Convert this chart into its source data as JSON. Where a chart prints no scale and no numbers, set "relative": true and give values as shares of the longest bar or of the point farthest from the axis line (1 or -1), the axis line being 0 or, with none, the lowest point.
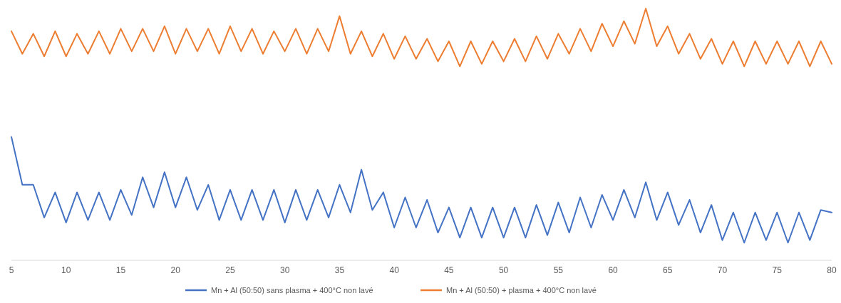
{
  "chart_data": {
    "type": "line",
    "relative": true,
    "x": [
      5,
      6,
      7,
      8,
      9,
      10,
      11,
      12,
      13,
      14,
      15,
      16,
      17,
      18,
      19,
      20,
      21,
      22,
      23,
      24,
      25,
      26,
      27,
      28,
      29,
      30,
      31,
      32,
      33,
      34,
      35,
      36,
      37,
      38,
      39,
      40,
      41,
      42,
      43,
      44,
      45,
      46,
      47,
      48,
      49,
      50,
      51,
      52,
      53,
      54,
      55,
      56,
      57,
      58,
      59,
      60,
      61,
      62,
      63,
      64,
      65,
      66,
      67,
      68,
      69,
      70,
      71,
      72,
      73,
      74,
      75,
      76,
      77,
      78,
      79,
      80
    ],
    "xlim": [
      5,
      80
    ],
    "xticks": [
      5,
      10,
      15,
      20,
      25,
      30,
      35,
      40,
      45,
      50,
      55,
      60,
      65,
      70,
      75,
      80
    ],
    "grid": false,
    "legend": "bottom",
    "series": [
      {
        "name": "Mn + Al (50:50) sans plasma + 400°C non lavé",
        "color": "#4472c4",
        "values": [
          0.49,
          0.3,
          0.3,
          0.17,
          0.27,
          0.15,
          0.27,
          0.16,
          0.27,
          0.16,
          0.28,
          0.18,
          0.33,
          0.21,
          0.35,
          0.21,
          0.33,
          0.2,
          0.3,
          0.16,
          0.28,
          0.16,
          0.28,
          0.16,
          0.28,
          0.15,
          0.28,
          0.16,
          0.28,
          0.17,
          0.3,
          0.19,
          0.36,
          0.2,
          0.27,
          0.13,
          0.25,
          0.13,
          0.24,
          0.11,
          0.21,
          0.09,
          0.21,
          0.09,
          0.21,
          0.09,
          0.21,
          0.09,
          0.22,
          0.1,
          0.23,
          0.11,
          0.25,
          0.13,
          0.26,
          0.16,
          0.28,
          0.17,
          0.31,
          0.16,
          0.27,
          0.14,
          0.24,
          0.11,
          0.22,
          0.08,
          0.19,
          0.07,
          0.19,
          0.08,
          0.19,
          0.07,
          0.19,
          0.08,
          0.2,
          0.19
        ]
      },
      {
        "name": "Mn + Al (50:50) + plasma + 400°C non lavé",
        "color": "#ed7d31",
        "values": [
          0.91,
          0.82,
          0.9,
          0.81,
          0.91,
          0.81,
          0.9,
          0.82,
          0.91,
          0.82,
          0.92,
          0.83,
          0.92,
          0.83,
          0.93,
          0.82,
          0.92,
          0.83,
          0.92,
          0.82,
          0.93,
          0.83,
          0.92,
          0.82,
          0.91,
          0.83,
          0.92,
          0.82,
          0.92,
          0.83,
          0.97,
          0.82,
          0.91,
          0.81,
          0.9,
          0.8,
          0.89,
          0.8,
          0.88,
          0.79,
          0.87,
          0.77,
          0.87,
          0.78,
          0.87,
          0.79,
          0.88,
          0.79,
          0.89,
          0.8,
          0.9,
          0.82,
          0.92,
          0.83,
          0.94,
          0.85,
          0.95,
          0.86,
          1.0,
          0.85,
          0.93,
          0.82,
          0.9,
          0.8,
          0.88,
          0.78,
          0.87,
          0.77,
          0.87,
          0.78,
          0.87,
          0.78,
          0.87,
          0.77,
          0.87,
          0.78
        ]
      }
    ]
  }
}
